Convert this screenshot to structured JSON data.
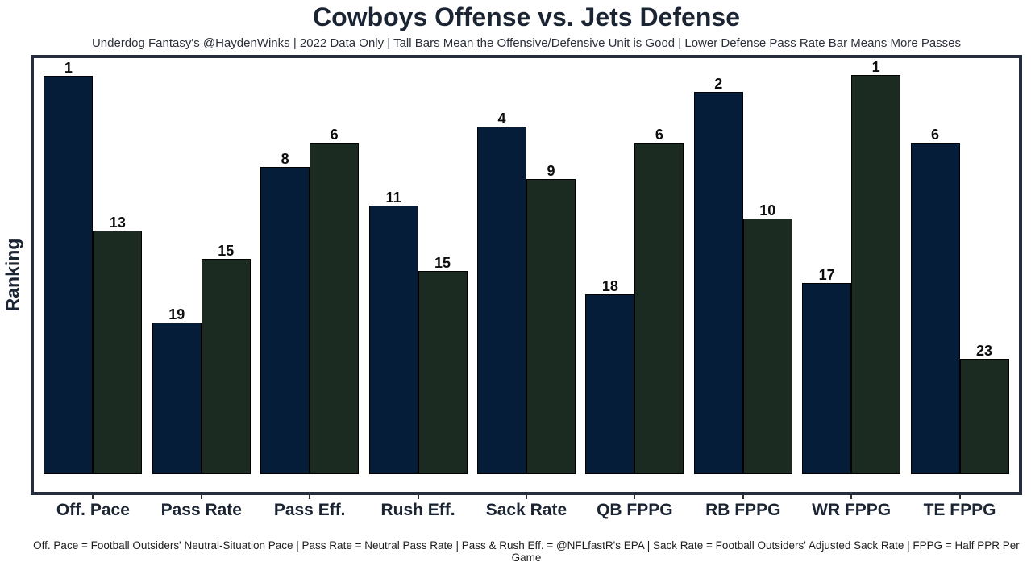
{
  "header": {
    "title": "Cowboys Offense vs. Jets Defense",
    "subtitle": "Underdog Fantasy's @HaydenWinks | 2022 Data Only | Tall Bars Mean the Offensive/Defensive Unit is Good | Lower Defense Pass Rate Bar Means More Passes"
  },
  "chart_data": {
    "type": "bar",
    "title": "Cowboys Offense vs. Jets Defense",
    "xlabel": "",
    "ylabel": "Ranking",
    "grid": false,
    "legend_position": "none",
    "y_axis_ticks": "none",
    "value_label_meaning": "NFL rank shown above each bar (1 = best of 32); taller bar = better unit",
    "categories": [
      "Off. Pace",
      "Pass Rate",
      "Pass Eff.",
      "Rush Eff.",
      "Sack Rate",
      "QB FPPG",
      "RB FPPG",
      "WR FPPG",
      "TE FPPG"
    ],
    "series": [
      {
        "name": "Cowboys Offense",
        "color": "#051d39",
        "ranks": [
          1,
          19,
          8,
          11,
          4,
          18,
          2,
          17,
          6
        ],
        "bar_height_pct": [
          95.2,
          36.2,
          73.4,
          64.2,
          83.0,
          43.0,
          91.3,
          45.7,
          79.2
        ]
      },
      {
        "name": "Jets Defense",
        "color": "#1c2b22",
        "ranks": [
          13,
          15,
          6,
          15,
          9,
          6,
          10,
          1,
          23
        ],
        "bar_height_pct": [
          58.2,
          51.4,
          79.2,
          48.6,
          70.5,
          79.2,
          61.1,
          95.4,
          27.6
        ]
      }
    ]
  },
  "footer": {
    "note": "Off. Pace = Football Outsiders' Neutral-Situation Pace | Pass Rate = Neutral Pass Rate | Pass & Rush Eff. = @NFLfastR's EPA | Sack Rate = Football Outsiders' Adjusted Sack Rate | FPPG = Half PPR Per Game"
  }
}
